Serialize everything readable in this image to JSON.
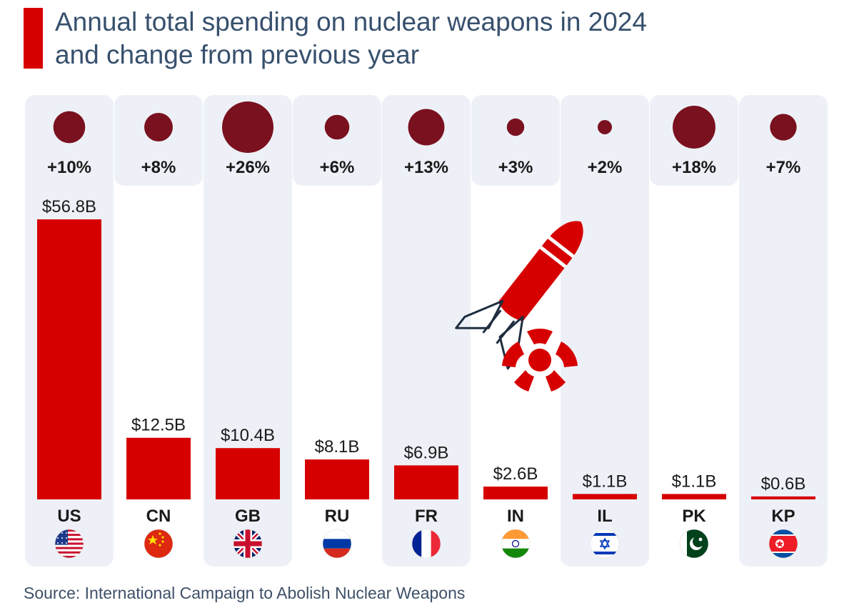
{
  "title_line1": "Annual total spending on nuclear weapons in 2024",
  "title_line2": "and change from previous year",
  "source": "Source: International Campaign to Abolish Nuclear Weapons",
  "colors": {
    "bar": "#d60000",
    "bubble": "#7a111f",
    "panel": "#edf1f7",
    "title": "#37506d"
  },
  "chart_data": {
    "type": "bar",
    "categories": [
      "US",
      "CN",
      "GB",
      "RU",
      "FR",
      "IN",
      "IL",
      "PK",
      "KP"
    ],
    "values": [
      56.8,
      12.5,
      10.4,
      8.1,
      6.9,
      2.6,
      1.1,
      1.1,
      0.6
    ],
    "value_labels": [
      "$56.8B",
      "$12.5B",
      "$10.4B",
      "$8.1B",
      "$6.9B",
      "$2.6B",
      "$1.1B",
      "$1.1B",
      "$0.6B"
    ],
    "change_pct": [
      10,
      8,
      26,
      6,
      13,
      3,
      2,
      18,
      7
    ],
    "change_labels": [
      "+10%",
      "+8%",
      "+26%",
      "+6%",
      "+13%",
      "+3%",
      "+2%",
      "+18%",
      "+7%"
    ],
    "flags": [
      "us-flag-icon",
      "cn-flag-icon",
      "gb-flag-icon",
      "ru-flag-icon",
      "fr-flag-icon",
      "in-flag-icon",
      "il-flag-icon",
      "pk-flag-icon",
      "kp-flag-icon"
    ],
    "ylim": [
      0,
      56.8
    ],
    "grid": false,
    "legend": "none"
  }
}
